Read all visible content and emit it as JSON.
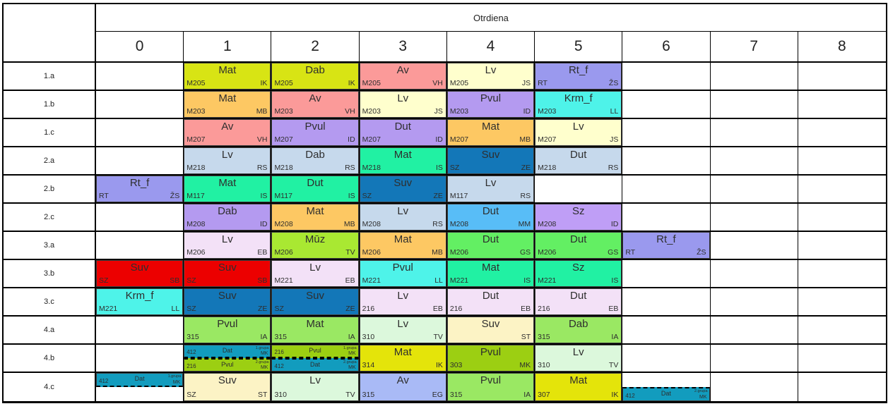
{
  "title": "Otrdiena",
  "periods": [
    "0",
    "1",
    "2",
    "3",
    "4",
    "5",
    "6",
    "7",
    "8"
  ],
  "palette": {
    "lime1": "#d8e414",
    "orange": "#fdc863",
    "salmon": "#fb9a99",
    "cream": "#ffffcd",
    "violet": "#9a99ee",
    "cyan": "#4ef3e9",
    "purple": "#b49af0",
    "purple2": "#bf9ef6",
    "bluegray": "#c6d9ec",
    "sgreen": "#21f1a3",
    "dblue": "#1377b8",
    "sky": "#58bdf7",
    "pinklav": "#f3e1f7",
    "lime2": "#a9e832",
    "green": "#63ef63",
    "red": "#ec0000",
    "lgreen": "#9ae863",
    "pgreen": "#dcf8dc",
    "cream2": "#fcf3c5",
    "yellow": "#e4e40a",
    "teal": "#129cbe",
    "olive": "#9ccf12",
    "peri": "#a9baf6"
  },
  "rows": [
    {
      "label": "1.a",
      "cells": [
        null,
        {
          "r": "M205",
          "s": "Mat",
          "t": "IK",
          "c": "lime1"
        },
        {
          "r": "M205",
          "s": "Dab",
          "t": "IK",
          "c": "lime1"
        },
        {
          "r": "M205",
          "s": "Av",
          "t": "VH",
          "c": "salmon"
        },
        {
          "r": "M205",
          "s": "Lv",
          "t": "JS",
          "c": "cream"
        },
        {
          "r": "RT",
          "s": "Rt_f",
          "t": "ŽS",
          "c": "violet"
        },
        null,
        null,
        null
      ]
    },
    {
      "label": "1.b",
      "cells": [
        null,
        {
          "r": "M203",
          "s": "Mat",
          "t": "MB",
          "c": "orange"
        },
        {
          "r": "M203",
          "s": "Av",
          "t": "VH",
          "c": "salmon"
        },
        {
          "r": "M203",
          "s": "Lv",
          "t": "JS",
          "c": "cream"
        },
        {
          "r": "M203",
          "s": "Pvul",
          "t": "ID",
          "c": "purple"
        },
        {
          "r": "M203",
          "s": "Krm_f",
          "t": "LL",
          "c": "cyan"
        },
        null,
        null,
        null
      ]
    },
    {
      "label": "1.c",
      "cells": [
        null,
        {
          "r": "M207",
          "s": "Av",
          "t": "VH",
          "c": "salmon"
        },
        {
          "r": "M207",
          "s": "Pvul",
          "t": "ID",
          "c": "purple"
        },
        {
          "r": "M207",
          "s": "Dut",
          "t": "ID",
          "c": "purple"
        },
        {
          "r": "M207",
          "s": "Mat",
          "t": "MB",
          "c": "orange"
        },
        {
          "r": "M207",
          "s": "Lv",
          "t": "JS",
          "c": "cream"
        },
        null,
        null,
        null
      ]
    },
    {
      "label": "2.a",
      "cells": [
        null,
        {
          "r": "M218",
          "s": "Lv",
          "t": "RS",
          "c": "bluegray"
        },
        {
          "r": "M218",
          "s": "Dab",
          "t": "RS",
          "c": "bluegray"
        },
        {
          "r": "M218",
          "s": "Mat",
          "t": "IS",
          "c": "sgreen"
        },
        {
          "r": "SZ",
          "s": "Suv",
          "t": "ZE",
          "c": "dblue"
        },
        {
          "r": "M218",
          "s": "Dut",
          "t": "RS",
          "c": "bluegray"
        },
        null,
        null,
        null
      ]
    },
    {
      "label": "2.b",
      "cells": [
        {
          "r": "RT",
          "s": "Rt_f",
          "t": "ŽS",
          "c": "violet"
        },
        {
          "r": "M117",
          "s": "Mat",
          "t": "IS",
          "c": "sgreen"
        },
        {
          "r": "M117",
          "s": "Dut",
          "t": "IS",
          "c": "sgreen"
        },
        {
          "r": "SZ",
          "s": "Suv",
          "t": "ZE",
          "c": "dblue"
        },
        {
          "r": "M117",
          "s": "Lv",
          "t": "RS",
          "c": "bluegray"
        },
        null,
        null,
        null,
        null
      ]
    },
    {
      "label": "2.c",
      "cells": [
        null,
        {
          "r": "M208",
          "s": "Dab",
          "t": "ID",
          "c": "purple"
        },
        {
          "r": "M208",
          "s": "Mat",
          "t": "MB",
          "c": "orange"
        },
        {
          "r": "M208",
          "s": "Lv",
          "t": "RS",
          "c": "bluegray"
        },
        {
          "r": "M208",
          "s": "Dut",
          "t": "MM",
          "c": "sky"
        },
        {
          "r": "M208",
          "s": "Sz",
          "t": "ID",
          "c": "purple2"
        },
        null,
        null,
        null
      ]
    },
    {
      "label": "3.a",
      "cells": [
        null,
        {
          "r": "M206",
          "s": "Lv",
          "t": "EB",
          "c": "pinklav"
        },
        {
          "r": "M206",
          "s": "Mūz",
          "t": "TV",
          "c": "lime2"
        },
        {
          "r": "M206",
          "s": "Mat",
          "t": "MB",
          "c": "orange"
        },
        {
          "r": "M206",
          "s": "Dut",
          "t": "GS",
          "c": "green"
        },
        {
          "r": "M206",
          "s": "Dut",
          "t": "GS",
          "c": "green"
        },
        {
          "r": "RT",
          "s": "Rt_f",
          "t": "ŽS",
          "c": "violet"
        },
        null,
        null
      ]
    },
    {
      "label": "3.b",
      "cells": [
        {
          "r": "SZ",
          "s": "Suv",
          "t": "SB",
          "c": "red"
        },
        {
          "r": "SZ",
          "s": "Suv",
          "t": "SB",
          "c": "red"
        },
        {
          "r": "M221",
          "s": "Lv",
          "t": "EB",
          "c": "pinklav"
        },
        {
          "r": "M221",
          "s": "Pvul",
          "t": "LL",
          "c": "cyan"
        },
        {
          "r": "M221",
          "s": "Mat",
          "t": "IS",
          "c": "sgreen"
        },
        {
          "r": "M221",
          "s": "Sz",
          "t": "IS",
          "c": "sgreen"
        },
        null,
        null,
        null
      ]
    },
    {
      "label": "3.c",
      "cells": [
        {
          "r": "M221",
          "s": "Krm_f",
          "t": "LL",
          "c": "cyan"
        },
        {
          "r": "SZ",
          "s": "Suv",
          "t": "ZE",
          "c": "dblue"
        },
        {
          "r": "SZ",
          "s": "Suv",
          "t": "ZE",
          "c": "dblue"
        },
        {
          "r": "216",
          "s": "Lv",
          "t": "EB",
          "c": "pinklav"
        },
        {
          "r": "216",
          "s": "Dut",
          "t": "EB",
          "c": "pinklav"
        },
        {
          "r": "216",
          "s": "Dut",
          "t": "EB",
          "c": "pinklav"
        },
        null,
        null,
        null
      ]
    },
    {
      "label": "4.a",
      "cells": [
        null,
        {
          "r": "315",
          "s": "Pvul",
          "t": "IA",
          "c": "lgreen"
        },
        {
          "r": "315",
          "s": "Mat",
          "t": "IA",
          "c": "lgreen"
        },
        {
          "r": "310",
          "s": "Lv",
          "t": "TV",
          "c": "pgreen"
        },
        {
          "r": "",
          "s": "Suv",
          "t": "ST",
          "c": "cream2"
        },
        {
          "r": "315",
          "s": "Dab",
          "t": "IA",
          "c": "lgreen"
        },
        null,
        null,
        null
      ]
    },
    {
      "label": "4.b",
      "cells": [
        null,
        {
          "split": [
            {
              "r": "412",
              "s": "Dat",
              "t": "MK",
              "c": "teal",
              "g": "1.grupa"
            },
            {
              "r": "216",
              "s": "Pvul",
              "t": "MK",
              "c": "olive",
              "g": "2.grupa"
            }
          ]
        },
        {
          "split": [
            {
              "r": "216",
              "s": "Pvul",
              "t": "MK",
              "c": "olive",
              "g": "1.grupa"
            },
            {
              "r": "412",
              "s": "Dat",
              "t": "MK",
              "c": "teal",
              "g": "2.grupa"
            }
          ]
        },
        {
          "r": "314",
          "s": "Mat",
          "t": "IK",
          "c": "yellow"
        },
        {
          "r": "303",
          "s": "Pvul",
          "t": "MK",
          "c": "olive"
        },
        {
          "r": "310",
          "s": "Lv",
          "t": "TV",
          "c": "pgreen"
        },
        null,
        null,
        null
      ]
    },
    {
      "label": "4.c",
      "cells": [
        {
          "half": "top",
          "r": "412",
          "s": "Dat",
          "t": "MK",
          "c": "teal",
          "g": "1.grupa"
        },
        {
          "r": "SZ",
          "s": "Suv",
          "t": "ST",
          "c": "cream2"
        },
        {
          "r": "310",
          "s": "Lv",
          "t": "TV",
          "c": "pgreen"
        },
        {
          "r": "315",
          "s": "Av",
          "t": "EG",
          "c": "peri"
        },
        {
          "r": "315",
          "s": "Pvul",
          "t": "IA",
          "c": "lgreen"
        },
        {
          "r": "307",
          "s": "Mat",
          "t": "IK",
          "c": "yellow"
        },
        {
          "half": "bottom",
          "r": "412",
          "s": "Dat",
          "t": "MK",
          "c": "teal",
          "g": "2.grupa"
        },
        null,
        null
      ]
    }
  ]
}
